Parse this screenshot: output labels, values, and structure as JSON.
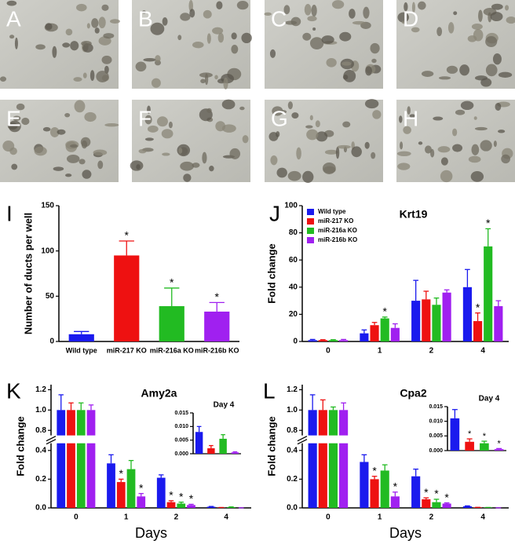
{
  "image_panels": [
    "A",
    "B",
    "C",
    "D",
    "E",
    "F",
    "G",
    "H"
  ],
  "chart_data": [
    {
      "type": "bar",
      "panel_label": "I",
      "ylabel": "Number of ducts per well",
      "categories": [
        "Wild type",
        "miR-217 KO",
        "miR-216a KO",
        "miR-216b KO"
      ],
      "values": [
        8,
        95,
        39,
        33
      ],
      "errors": [
        3,
        16,
        20,
        10
      ],
      "colors": [
        "#1a1aee",
        "#ee1111",
        "#22bb22",
        "#a020f0"
      ],
      "significance": [
        null,
        "*",
        "*",
        "*"
      ],
      "ylim": [
        0,
        150
      ],
      "yticks": [
        0,
        50,
        100,
        150
      ]
    },
    {
      "type": "grouped-bar",
      "panel_label": "J",
      "title": "Krt19",
      "ylabel": "Fold change",
      "categories": [
        "0",
        "1",
        "2",
        "4"
      ],
      "series": [
        {
          "name": "Wild type",
          "color": "#1a1aee",
          "values": [
            1,
            6,
            30,
            40
          ],
          "errors": [
            0.5,
            2.5,
            15,
            13
          ],
          "significance": [
            null,
            null,
            null,
            null
          ]
        },
        {
          "name": "miR-217 KO",
          "color": "#ee1111",
          "values": [
            1,
            12,
            31,
            15
          ],
          "errors": [
            0.3,
            2,
            6,
            6
          ],
          "significance": [
            null,
            null,
            null,
            "*"
          ]
        },
        {
          "name": "miR-216a KO",
          "color": "#22bb22",
          "values": [
            1,
            17,
            27,
            70
          ],
          "errors": [
            0.3,
            1,
            5,
            13
          ],
          "significance": [
            null,
            "*",
            null,
            "*"
          ]
        },
        {
          "name": "miR-216b KO",
          "color": "#a020f0",
          "values": [
            1,
            10,
            36,
            26
          ],
          "errors": [
            0.5,
            3,
            2,
            4
          ],
          "significance": [
            null,
            null,
            null,
            null
          ]
        }
      ],
      "ylim": [
        0,
        100
      ],
      "yticks": [
        0,
        20,
        40,
        60,
        80,
        100
      ],
      "legend": "top-left"
    },
    {
      "type": "grouped-bar",
      "panel_label": "K",
      "title": "Amy2a",
      "ylabel": "Fold change",
      "xlabel": "Days",
      "categories": [
        "0",
        "1",
        "2",
        "4"
      ],
      "series": [
        {
          "color": "#1a1aee",
          "values": [
            1.0,
            0.31,
            0.21,
            0.008
          ],
          "errors": [
            0.15,
            0.06,
            0.02,
            0.002
          ],
          "significance": [
            null,
            null,
            null,
            null
          ]
        },
        {
          "color": "#ee1111",
          "values": [
            1.0,
            0.18,
            0.04,
            0.002
          ],
          "errors": [
            0.07,
            0.02,
            0.01,
            0.001
          ],
          "significance": [
            null,
            "*",
            "*",
            null
          ]
        },
        {
          "color": "#22bb22",
          "values": [
            1.0,
            0.27,
            0.03,
            0.0055
          ],
          "errors": [
            0.07,
            0.06,
            0.01,
            0.0015
          ],
          "significance": [
            null,
            null,
            "*",
            null
          ]
        },
        {
          "color": "#a020f0",
          "values": [
            1.0,
            0.08,
            0.02,
            0.0005
          ],
          "errors": [
            0.05,
            0.02,
            0.005,
            0.0002
          ],
          "significance": [
            null,
            "*",
            "*",
            null
          ]
        }
      ],
      "ylim": [
        0,
        1.25
      ],
      "y_break": [
        0.45,
        0.75
      ],
      "yticks": [
        {
          "value": 0,
          "label": "0.0"
        },
        0.2,
        0.4,
        0.8,
        {
          "value": 1,
          "label": "1.0"
        },
        1.2
      ],
      "inset": {
        "title": "Day 4",
        "values": [
          0.008,
          0.002,
          0.0055,
          0.0005
        ],
        "errors": [
          0.002,
          0.001,
          0.0015,
          0.0002
        ],
        "colors": [
          "#1a1aee",
          "#ee1111",
          "#22bb22",
          "#a020f0"
        ],
        "significance": [
          null,
          null,
          null,
          null
        ],
        "ylim": [
          0,
          0.015
        ],
        "yticks": [
          {
            "value": 0,
            "label": "0.000"
          },
          0.005,
          {
            "value": 0.01,
            "label": "0.010"
          },
          0.015
        ]
      }
    },
    {
      "type": "grouped-bar",
      "panel_label": "L",
      "title": "Cpa2",
      "ylabel": "Fold change",
      "xlabel": "Days",
      "categories": [
        "0",
        "1",
        "2",
        "4"
      ],
      "series": [
        {
          "color": "#1a1aee",
          "values": [
            1.0,
            0.32,
            0.22,
            0.011
          ],
          "errors": [
            0.15,
            0.05,
            0.05,
            0.003
          ],
          "significance": [
            null,
            null,
            null,
            null
          ]
        },
        {
          "color": "#ee1111",
          "values": [
            1.0,
            0.2,
            0.06,
            0.003
          ],
          "errors": [
            0.1,
            0.02,
            0.01,
            0.001
          ],
          "significance": [
            null,
            "*",
            "*",
            null
          ]
        },
        {
          "color": "#22bb22",
          "values": [
            1.0,
            0.26,
            0.04,
            0.0025
          ],
          "errors": [
            0.03,
            0.04,
            0.02,
            0.0007
          ],
          "significance": [
            null,
            null,
            "*",
            null
          ]
        },
        {
          "color": "#a020f0",
          "values": [
            1.0,
            0.08,
            0.03,
            0.0005
          ],
          "errors": [
            0.07,
            0.03,
            0.005,
            0.0002
          ],
          "significance": [
            null,
            "*",
            "*",
            null
          ]
        }
      ],
      "ylim": [
        0,
        1.25
      ],
      "y_break": [
        0.45,
        0.75
      ],
      "yticks": [
        {
          "value": 0,
          "label": "0.0"
        },
        0.2,
        0.4,
        0.8,
        {
          "value": 1,
          "label": "1.0"
        },
        1.2
      ],
      "inset": {
        "title": "Day 4",
        "values": [
          0.011,
          0.003,
          0.0025,
          0.0005
        ],
        "errors": [
          0.003,
          0.001,
          0.0007,
          0.0002
        ],
        "colors": [
          "#1a1aee",
          "#ee1111",
          "#22bb22",
          "#a020f0"
        ],
        "significance": [
          null,
          "*",
          "*",
          "*"
        ],
        "ylim": [
          0,
          0.015
        ],
        "yticks": [
          {
            "value": 0,
            "label": "0.000"
          },
          0.005,
          {
            "value": 0.01,
            "label": "0.010"
          },
          0.015
        ]
      }
    }
  ]
}
